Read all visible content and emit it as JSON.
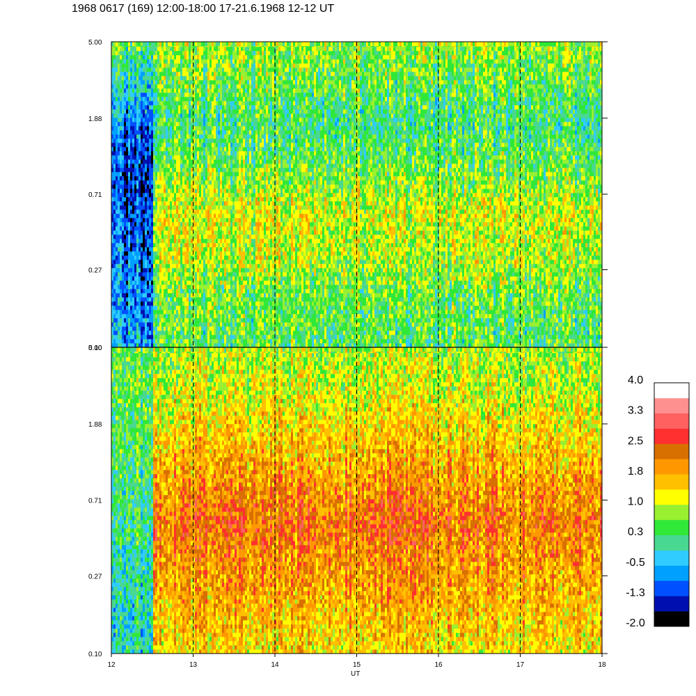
{
  "title": "1968 0617 (169) 12:00-18:00 17-21.6.1968  12-12 UT",
  "chart_data": {
    "type": "heatmap",
    "xlabel": "UT",
    "xlim": [
      12,
      18
    ],
    "x_ticks": [
      "12",
      "13",
      "14",
      "15",
      "16",
      "17",
      "18"
    ],
    "x_tick_values": [
      12,
      13,
      14,
      15,
      16,
      17,
      18
    ],
    "dashed_vlines_at": [
      13,
      14,
      15,
      16,
      17
    ],
    "y_scale": "log",
    "ylim": [
      0.1,
      5.0
    ],
    "y_ticks": [
      "0.10",
      "0.27",
      "0.71",
      "1.88",
      "5.00"
    ],
    "y_tick_values": [
      0.1,
      0.27,
      0.71,
      1.88,
      5.0
    ],
    "panels": [
      {
        "name": "upper",
        "note": "level profile by y (low→high freq), mostly 0.3 to 1.0",
        "data_start_x": 12.0,
        "bg_profile": [
          0.4,
          0.5,
          0.9,
          1.1,
          0.6,
          0.2,
          0.5,
          0.8
        ],
        "early_profile": [
          -0.6,
          -0.8,
          -1.0,
          -1.1,
          -1.2,
          -0.9,
          -0.2,
          0.5
        ]
      },
      {
        "name": "lower",
        "note": "level profile by y, mostly 1.0 to 2.5",
        "data_start_x": 12.0,
        "bg_profile": [
          1.4,
          1.7,
          2.0,
          2.3,
          1.9,
          1.5,
          1.1,
          0.9
        ],
        "early_profile": [
          0.0,
          -0.1,
          0.0,
          0.2,
          0.3,
          0.4,
          0.5,
          0.6
        ]
      }
    ],
    "colorbar": {
      "labels": [
        "4.0",
        "3.3",
        "2.5",
        "1.8",
        "1.0",
        "0.3",
        "-0.5",
        "-1.3",
        "-2.0"
      ],
      "min": -2.0,
      "max": 4.0,
      "colors": [
        "#000000",
        "#0010b0",
        "#0050ff",
        "#00a0ff",
        "#30ccff",
        "#48d890",
        "#30e838",
        "#98f030",
        "#ffff00",
        "#ffc000",
        "#ff9800",
        "#d87000",
        "#ff3030",
        "#ff6060",
        "#ff9090",
        "#ffffff"
      ]
    }
  }
}
